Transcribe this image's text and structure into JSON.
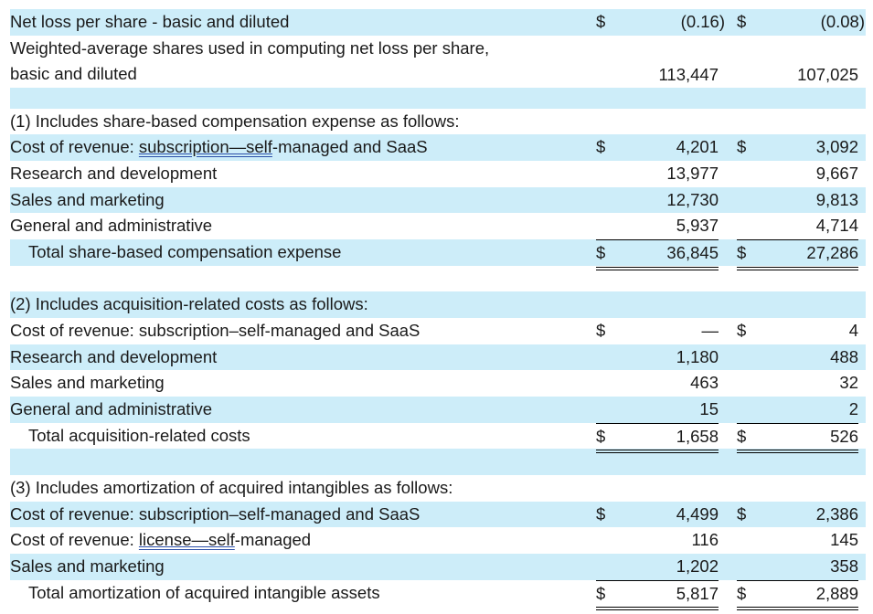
{
  "eps": {
    "label": "Net loss per share - basic and diluted",
    "cur1": "$",
    "v1": "(0.16)",
    "cur2": "$",
    "v2": "(0.08)"
  },
  "shares": {
    "label_line1": "Weighted-average shares used in computing net loss per share,",
    "label_line2": "basic and diluted",
    "v1": "113,447",
    "v2": "107,025"
  },
  "sbc": {
    "heading": "(1) Includes share-based compensation expense as follows:",
    "cost_prefix": "Cost of revenue: ",
    "cost_link": "subscription—self",
    "cost_suffix": "-managed and SaaS",
    "rows": [
      {
        "cur1": "$",
        "v1": "4,201",
        "cur2": "$",
        "v2": "3,092"
      },
      {
        "label": "Research and development",
        "v1": "13,977",
        "v2": "9,667"
      },
      {
        "label": "Sales and marketing",
        "v1": "12,730",
        "v2": "9,813"
      },
      {
        "label": "General and administrative",
        "v1": "5,937",
        "v2": "4,714"
      }
    ],
    "total": {
      "label": "Total share-based compensation expense",
      "cur1": "$",
      "v1": "36,845",
      "cur2": "$",
      "v2": "27,286"
    }
  },
  "acq": {
    "heading": "(2) Includes acquisition-related costs as follows:",
    "rows": [
      {
        "label": "Cost of revenue: subscription–self-managed and SaaS",
        "cur1": "$",
        "v1": "—",
        "cur2": "$",
        "v2": "4"
      },
      {
        "label": "Research and development",
        "v1": "1,180",
        "v2": "488"
      },
      {
        "label": "Sales and marketing",
        "v1": "463",
        "v2": "32"
      },
      {
        "label": "General and administrative",
        "v1": "15",
        "v2": "2"
      }
    ],
    "total": {
      "label": "Total acquisition-related costs",
      "cur1": "$",
      "v1": "1,658",
      "cur2": "$",
      "v2": "526"
    }
  },
  "amort": {
    "heading": "(3) Includes amortization of acquired intangibles as follows:",
    "license_prefix": "Cost of revenue: ",
    "license_link": "license—self",
    "license_suffix": "-managed",
    "rows": [
      {
        "label": "Cost of revenue: subscription–self-managed and SaaS",
        "cur1": "$",
        "v1": "4,499",
        "cur2": "$",
        "v2": "2,386"
      },
      {
        "v1": "116",
        "v2": "145"
      },
      {
        "label": "Sales and marketing",
        "v1": "1,202",
        "v2": "358"
      }
    ],
    "total": {
      "label": "Total amortization of acquired intangible assets",
      "cur1": "$",
      "v1": "5,817",
      "cur2": "$",
      "v2": "2,889"
    }
  }
}
